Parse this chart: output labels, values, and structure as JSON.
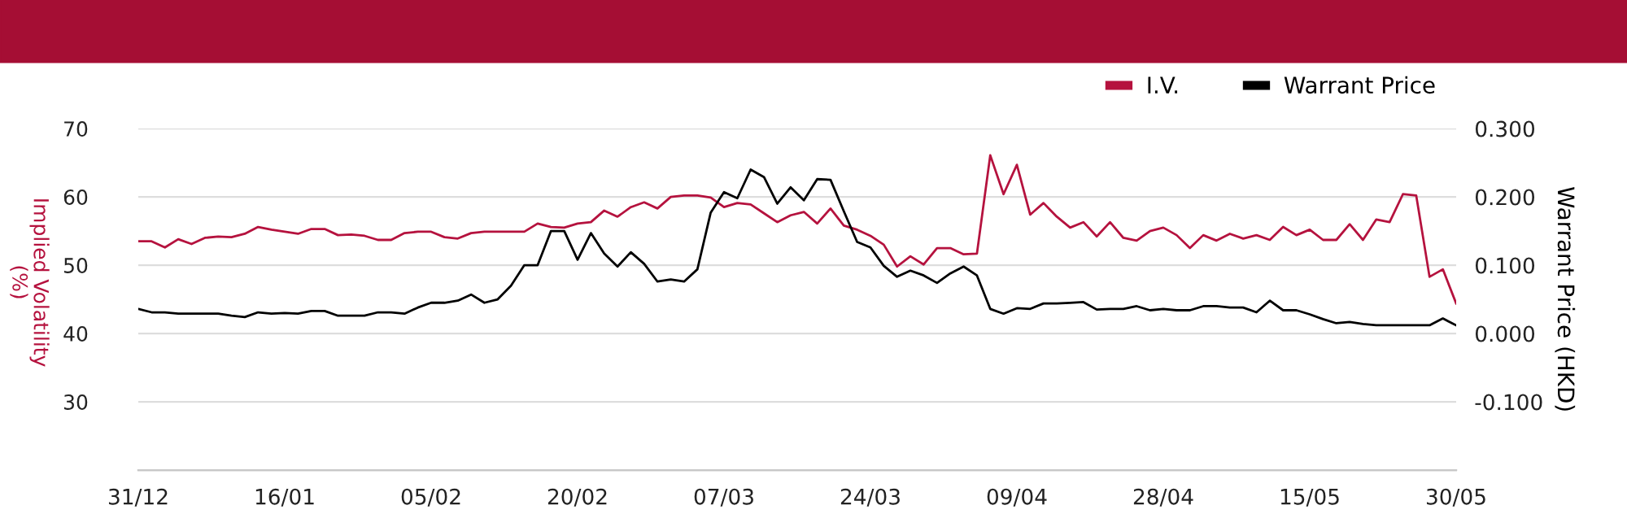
{
  "chart_data": {
    "type": "line",
    "categories": [
      "31/12",
      null,
      null,
      null,
      null,
      null,
      null,
      null,
      null,
      null,
      null,
      "16/01",
      null,
      null,
      null,
      null,
      null,
      null,
      null,
      null,
      null,
      null,
      "05/02",
      null,
      null,
      null,
      null,
      null,
      null,
      null,
      null,
      null,
      null,
      "20/02",
      null,
      null,
      null,
      null,
      null,
      null,
      null,
      null,
      null,
      null,
      "07/03",
      null,
      null,
      null,
      null,
      null,
      null,
      null,
      null,
      null,
      null,
      "24/03",
      null,
      null,
      null,
      null,
      null,
      null,
      null,
      null,
      null,
      null,
      "09/04",
      null,
      null,
      null,
      null,
      null,
      null,
      null,
      null,
      null,
      null,
      "28/04",
      null,
      null,
      null,
      null,
      null,
      null,
      null,
      null,
      null,
      null,
      "15/05",
      null,
      null,
      null,
      null,
      null,
      null,
      null,
      null,
      null,
      null,
      "30/05"
    ],
    "series": [
      {
        "name": "I.V.",
        "color": "#b5123e",
        "values": [
          53.5,
          53.5,
          52.6,
          53.8,
          53.1,
          54.0,
          54.2,
          54.1,
          54.6,
          55.6,
          55.2,
          54.9,
          54.6,
          55.3,
          55.3,
          54.4,
          54.5,
          54.3,
          53.7,
          53.7,
          54.7,
          54.9,
          54.9,
          54.1,
          53.9,
          54.7,
          54.9,
          54.9,
          54.9,
          54.9,
          56.1,
          55.6,
          55.5,
          56.1,
          56.3,
          58.0,
          57.1,
          58.5,
          59.2,
          58.3,
          60.0,
          60.2,
          60.2,
          59.9,
          58.5,
          59.1,
          58.9,
          57.6,
          56.3,
          57.3,
          57.8,
          56.1,
          58.3,
          55.8,
          55.2,
          54.3,
          53.0,
          49.8,
          51.3,
          50.1,
          52.5,
          52.5,
          51.6,
          51.7,
          66.1,
          60.4,
          64.7,
          57.4,
          59.1,
          57.1,
          55.5,
          56.3,
          54.2,
          56.3,
          54.0,
          53.6,
          55.0,
          55.5,
          54.4,
          52.5,
          54.4,
          53.6,
          54.6,
          53.9,
          54.4,
          53.7,
          55.6,
          54.4,
          55.2,
          53.7,
          53.7,
          56.0,
          53.7,
          56.7,
          56.3,
          60.4,
          60.2,
          48.3,
          49.4,
          44.4
        ]
      },
      {
        "name": "Warrant Price",
        "color": "#000000",
        "axis": "y2",
        "values": [
          0.036,
          0.031,
          0.031,
          0.029,
          0.029,
          0.029,
          0.029,
          0.026,
          0.024,
          0.031,
          0.029,
          0.03,
          0.029,
          0.033,
          0.033,
          0.026,
          0.026,
          0.026,
          0.031,
          0.031,
          0.029,
          0.038,
          0.045,
          0.045,
          0.048,
          0.057,
          0.045,
          0.05,
          0.07,
          0.1,
          0.1,
          0.15,
          0.15,
          0.108,
          0.147,
          0.117,
          0.098,
          0.119,
          0.102,
          0.076,
          0.079,
          0.076,
          0.094,
          0.177,
          0.207,
          0.198,
          0.24,
          0.229,
          0.19,
          0.214,
          0.195,
          0.226,
          0.225,
          0.179,
          0.134,
          0.126,
          0.099,
          0.083,
          0.092,
          0.085,
          0.074,
          0.088,
          0.098,
          0.085,
          0.036,
          0.029,
          0.037,
          0.036,
          0.044,
          0.044,
          0.045,
          0.046,
          0.035,
          0.036,
          0.036,
          0.04,
          0.034,
          0.036,
          0.034,
          0.034,
          0.04,
          0.04,
          0.038,
          0.038,
          0.031,
          0.048,
          0.034,
          0.034,
          0.028,
          0.021,
          0.015,
          0.017,
          0.014,
          0.012,
          0.012,
          0.012,
          0.012,
          0.012,
          0.022,
          0.012
        ]
      }
    ],
    "ylabel": "Implied Volatility\n(%)",
    "y2label": "Warrant Price (HKD)",
    "ylim": [
      20,
      70
    ],
    "yticks": [
      30,
      40,
      50,
      60,
      70
    ],
    "y2lim": [
      -0.2,
      0.3
    ],
    "y2ticks": [
      {
        "value": -0.1,
        "label": "-0.100"
      },
      {
        "value": 0.0,
        "label": "0.000"
      },
      {
        "value": 0.1,
        "label": "0.100"
      },
      {
        "value": 0.2,
        "label": "0.200"
      },
      {
        "value": 0.3,
        "label": "0.300"
      }
    ],
    "grid": "y",
    "legend": "top right",
    "marker": "none",
    "line_style": "solid"
  }
}
